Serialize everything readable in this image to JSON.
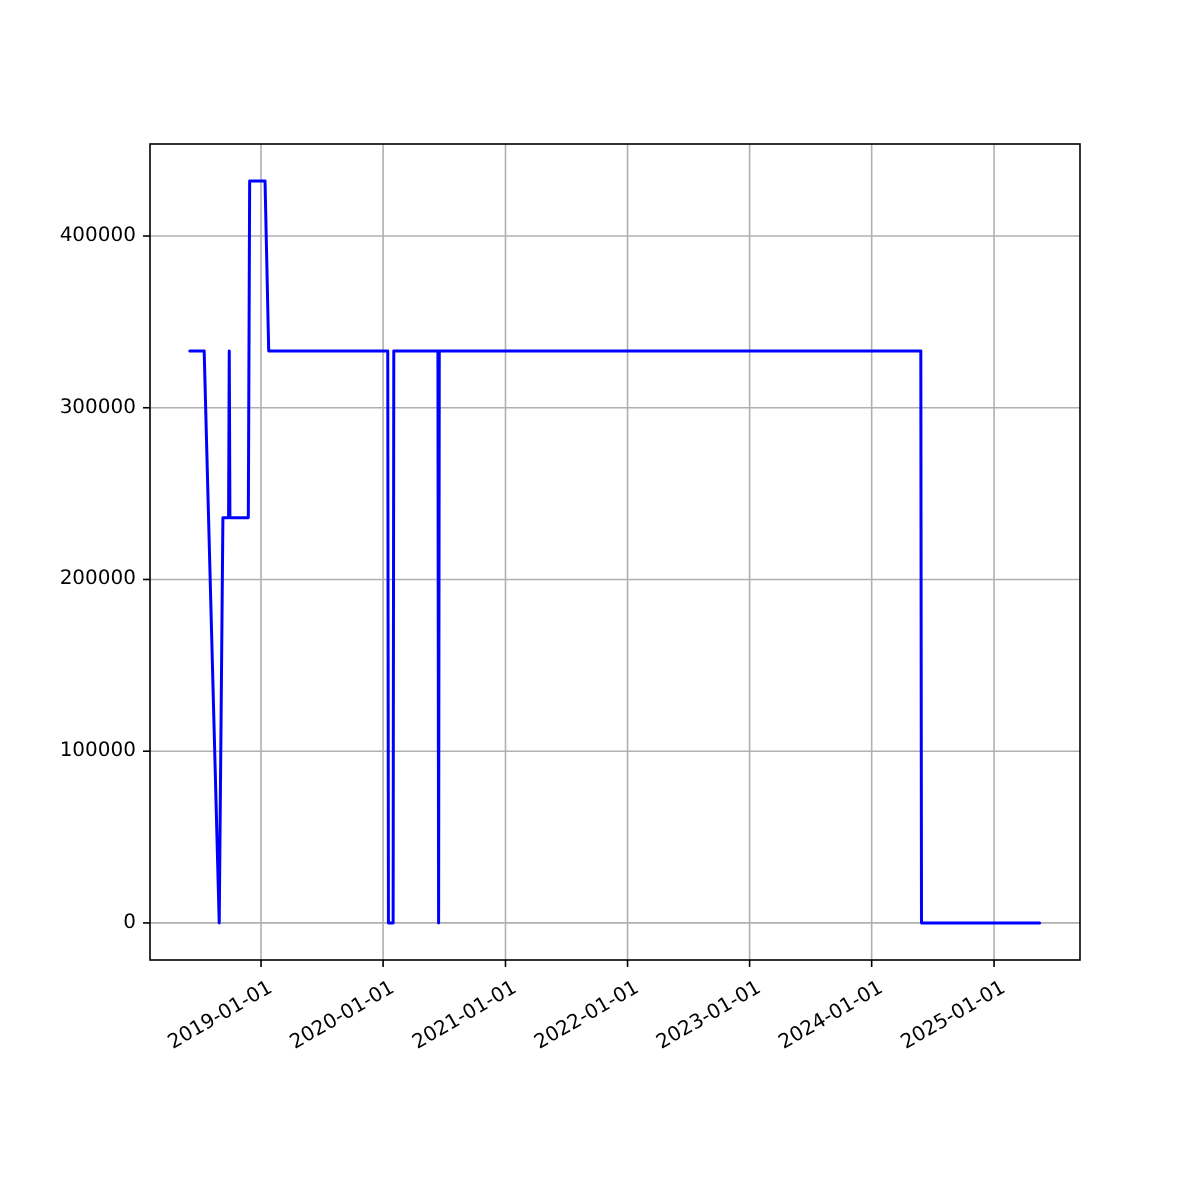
{
  "chart_data": {
    "type": "line",
    "x": [
      "2018-06-02",
      "2018-07-15",
      "2018-08-29",
      "2018-09-09",
      "2018-09-26",
      "2018-09-28",
      "2018-09-30",
      "2018-11-24",
      "2018-11-28",
      "2019-01-13",
      "2019-01-24",
      "2020-01-15",
      "2020-01-17",
      "2020-01-31",
      "2020-02-02",
      "2020-06-13",
      "2020-06-15",
      "2020-06-17",
      "2024-05-27",
      "2024-05-29",
      "2025-05-17"
    ],
    "series": [
      {
        "color": "#0000ff",
        "values": [
          333000,
          333000,
          0,
          236000,
          236000,
          333000,
          236000,
          236000,
          432000,
          432000,
          333000,
          333000,
          0,
          0,
          333000,
          333000,
          0,
          333000,
          333000,
          0,
          0
        ]
      }
    ],
    "xlim": [
      "2018-02-03",
      "2025-09-15"
    ],
    "xticks": [
      "2019-01-01",
      "2020-01-01",
      "2021-01-01",
      "2022-01-01",
      "2023-01-01",
      "2024-01-01",
      "2025-01-01"
    ],
    "ylim": [
      -21600,
      453600
    ],
    "yticks": [
      0,
      100000,
      200000,
      300000,
      400000
    ],
    "grid": true
  }
}
